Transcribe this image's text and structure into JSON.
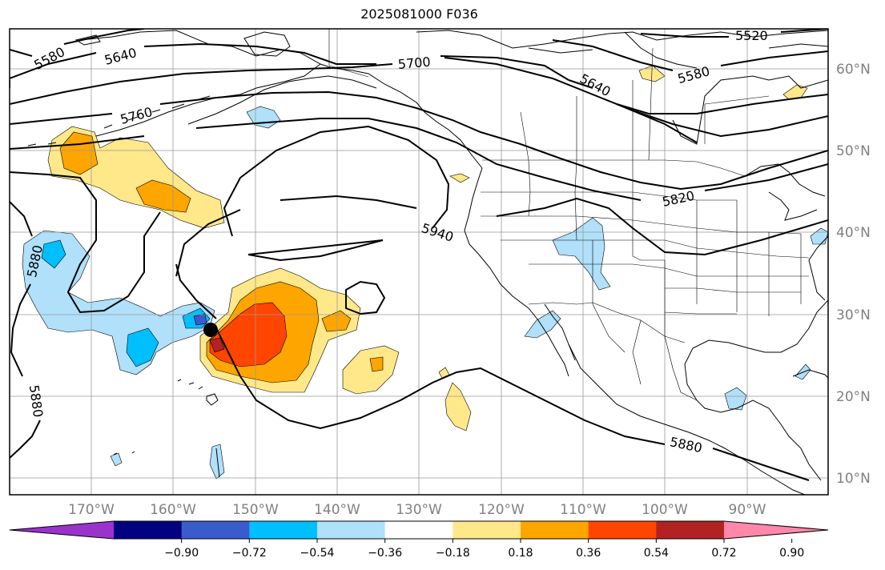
{
  "title": "2025081000 F036",
  "map": {
    "projection": "plate-carree",
    "lon_range": [
      -180,
      -80
    ],
    "lat_range": [
      7,
      65
    ],
    "grid": true,
    "lat_labels": [
      "60°N",
      "50°N",
      "40°N",
      "30°N",
      "20°N",
      "10°N"
    ],
    "lon_labels": [
      "170°W",
      "160°W",
      "150°W",
      "140°W",
      "130°W",
      "120°W",
      "110°W",
      "100°W",
      "90°W"
    ],
    "height_contour_labels": [
      "5580",
      "5640",
      "5760",
      "5700",
      "5520",
      "5580",
      "5640",
      "5820",
      "5940",
      "5880",
      "5880",
      "5880"
    ],
    "marker": {
      "lon": -155.5,
      "lat": 28.2
    }
  },
  "colorbar": {
    "ticks": [
      "−0.90",
      "−0.72",
      "−0.54",
      "−0.36",
      "−0.18",
      "0.18",
      "0.36",
      "0.54",
      "0.72",
      "0.90"
    ],
    "colors": [
      "#9933cc",
      "#000080",
      "#3a5bcc",
      "#00bfff",
      "#b0e0fa",
      "#ffffff",
      "#ffe88a",
      "#ffa500",
      "#ff4500",
      "#b22222",
      "#ff88aa"
    ]
  }
}
